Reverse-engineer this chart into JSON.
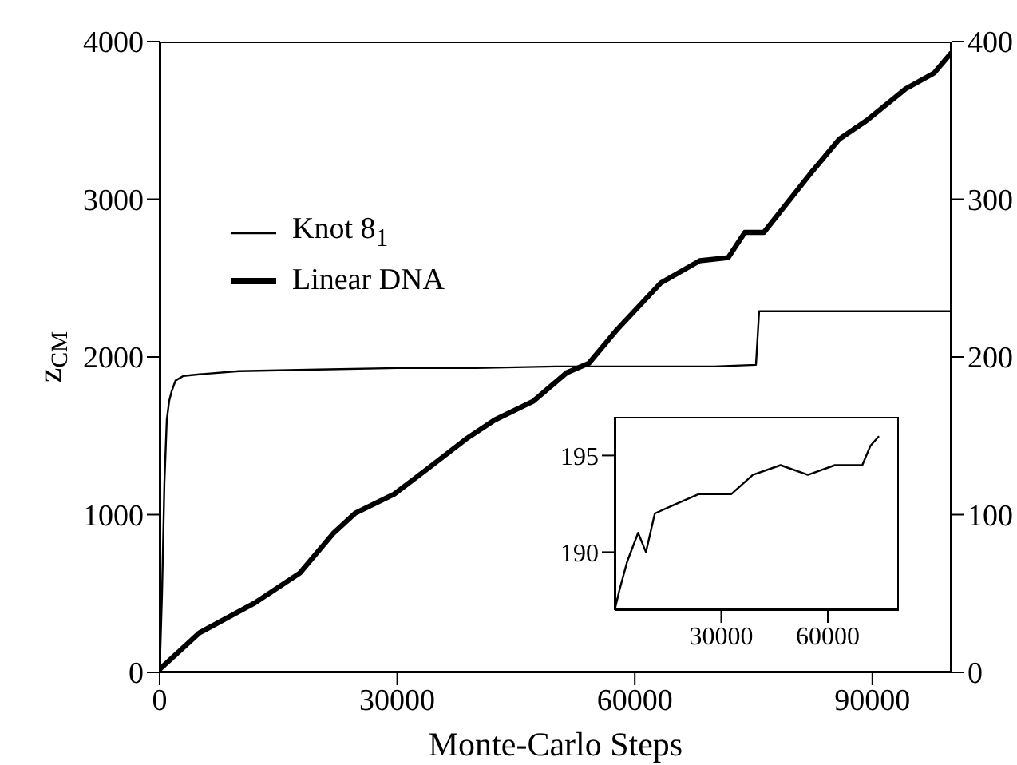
{
  "chart_data": [
    {
      "type": "line",
      "xlabel": "Monte-Carlo Steps",
      "ylabel": "z$_{CM}$",
      "xlim": [
        0,
        100000
      ],
      "xticks": [
        0,
        30000,
        60000,
        90000
      ],
      "ylim": [
        0,
        4000
      ],
      "yticks": [
        0,
        1000,
        2000,
        3000,
        4000
      ],
      "y2lim": [
        0,
        400
      ],
      "y2ticks": [
        0,
        100,
        200,
        300,
        400
      ],
      "legend": "top left",
      "marker": "none",
      "line_style": "solid",
      "grid": false,
      "series": [
        {
          "name": "Knot 8$_{1}$",
          "color": "#000000",
          "axis": "y2",
          "x": [
            0,
            300,
            600,
            900,
            1200,
            1500,
            2000,
            3000,
            5000,
            10000,
            20000,
            30000,
            40000,
            50000,
            60000,
            70000,
            75300,
            75700,
            80000,
            90000,
            100000
          ],
          "values": [
            0,
            50,
            120,
            160,
            172,
            178,
            185,
            188,
            189,
            191,
            192,
            193,
            193,
            194,
            194,
            194,
            195,
            229,
            229,
            229,
            229
          ]
        },
        {
          "name": "Linear DNA",
          "color": "#000000",
          "x": [
            0,
            5000,
            12000,
            17700,
            21900,
            24700,
            29600,
            33800,
            38700,
            42300,
            47200,
            51400,
            54200,
            57700,
            63300,
            68200,
            71800,
            73900,
            76300,
            82300,
            85800,
            89300,
            94200,
            97800,
            100000
          ],
          "values": [
            20,
            250,
            440,
            630,
            880,
            1010,
            1130,
            1290,
            1480,
            1600,
            1720,
            1900,
            1960,
            2170,
            2470,
            2610,
            2630,
            2790,
            2790,
            3170,
            3380,
            3500,
            3700,
            3800,
            3930
          ]
        }
      ]
    },
    {
      "type": "line",
      "xlim": [
        0,
        80000
      ],
      "xticks": [
        30000,
        60000
      ],
      "ylim": [
        187,
        197
      ],
      "yticks": [
        190,
        195
      ],
      "marker": "none",
      "line_style": "solid",
      "grid": false,
      "series": [
        {
          "color": "#000000",
          "x": [
            0,
            1300,
            3500,
            6600,
            8800,
            11300,
            17400,
            23600,
            32800,
            38900,
            46700,
            54400,
            62000,
            69700,
            72000,
            74400
          ],
          "values": [
            187,
            188,
            189.5,
            191,
            190,
            192,
            192.5,
            193,
            193,
            194,
            194.5,
            194,
            194.5,
            194.5,
            195.5,
            196
          ]
        }
      ]
    }
  ]
}
